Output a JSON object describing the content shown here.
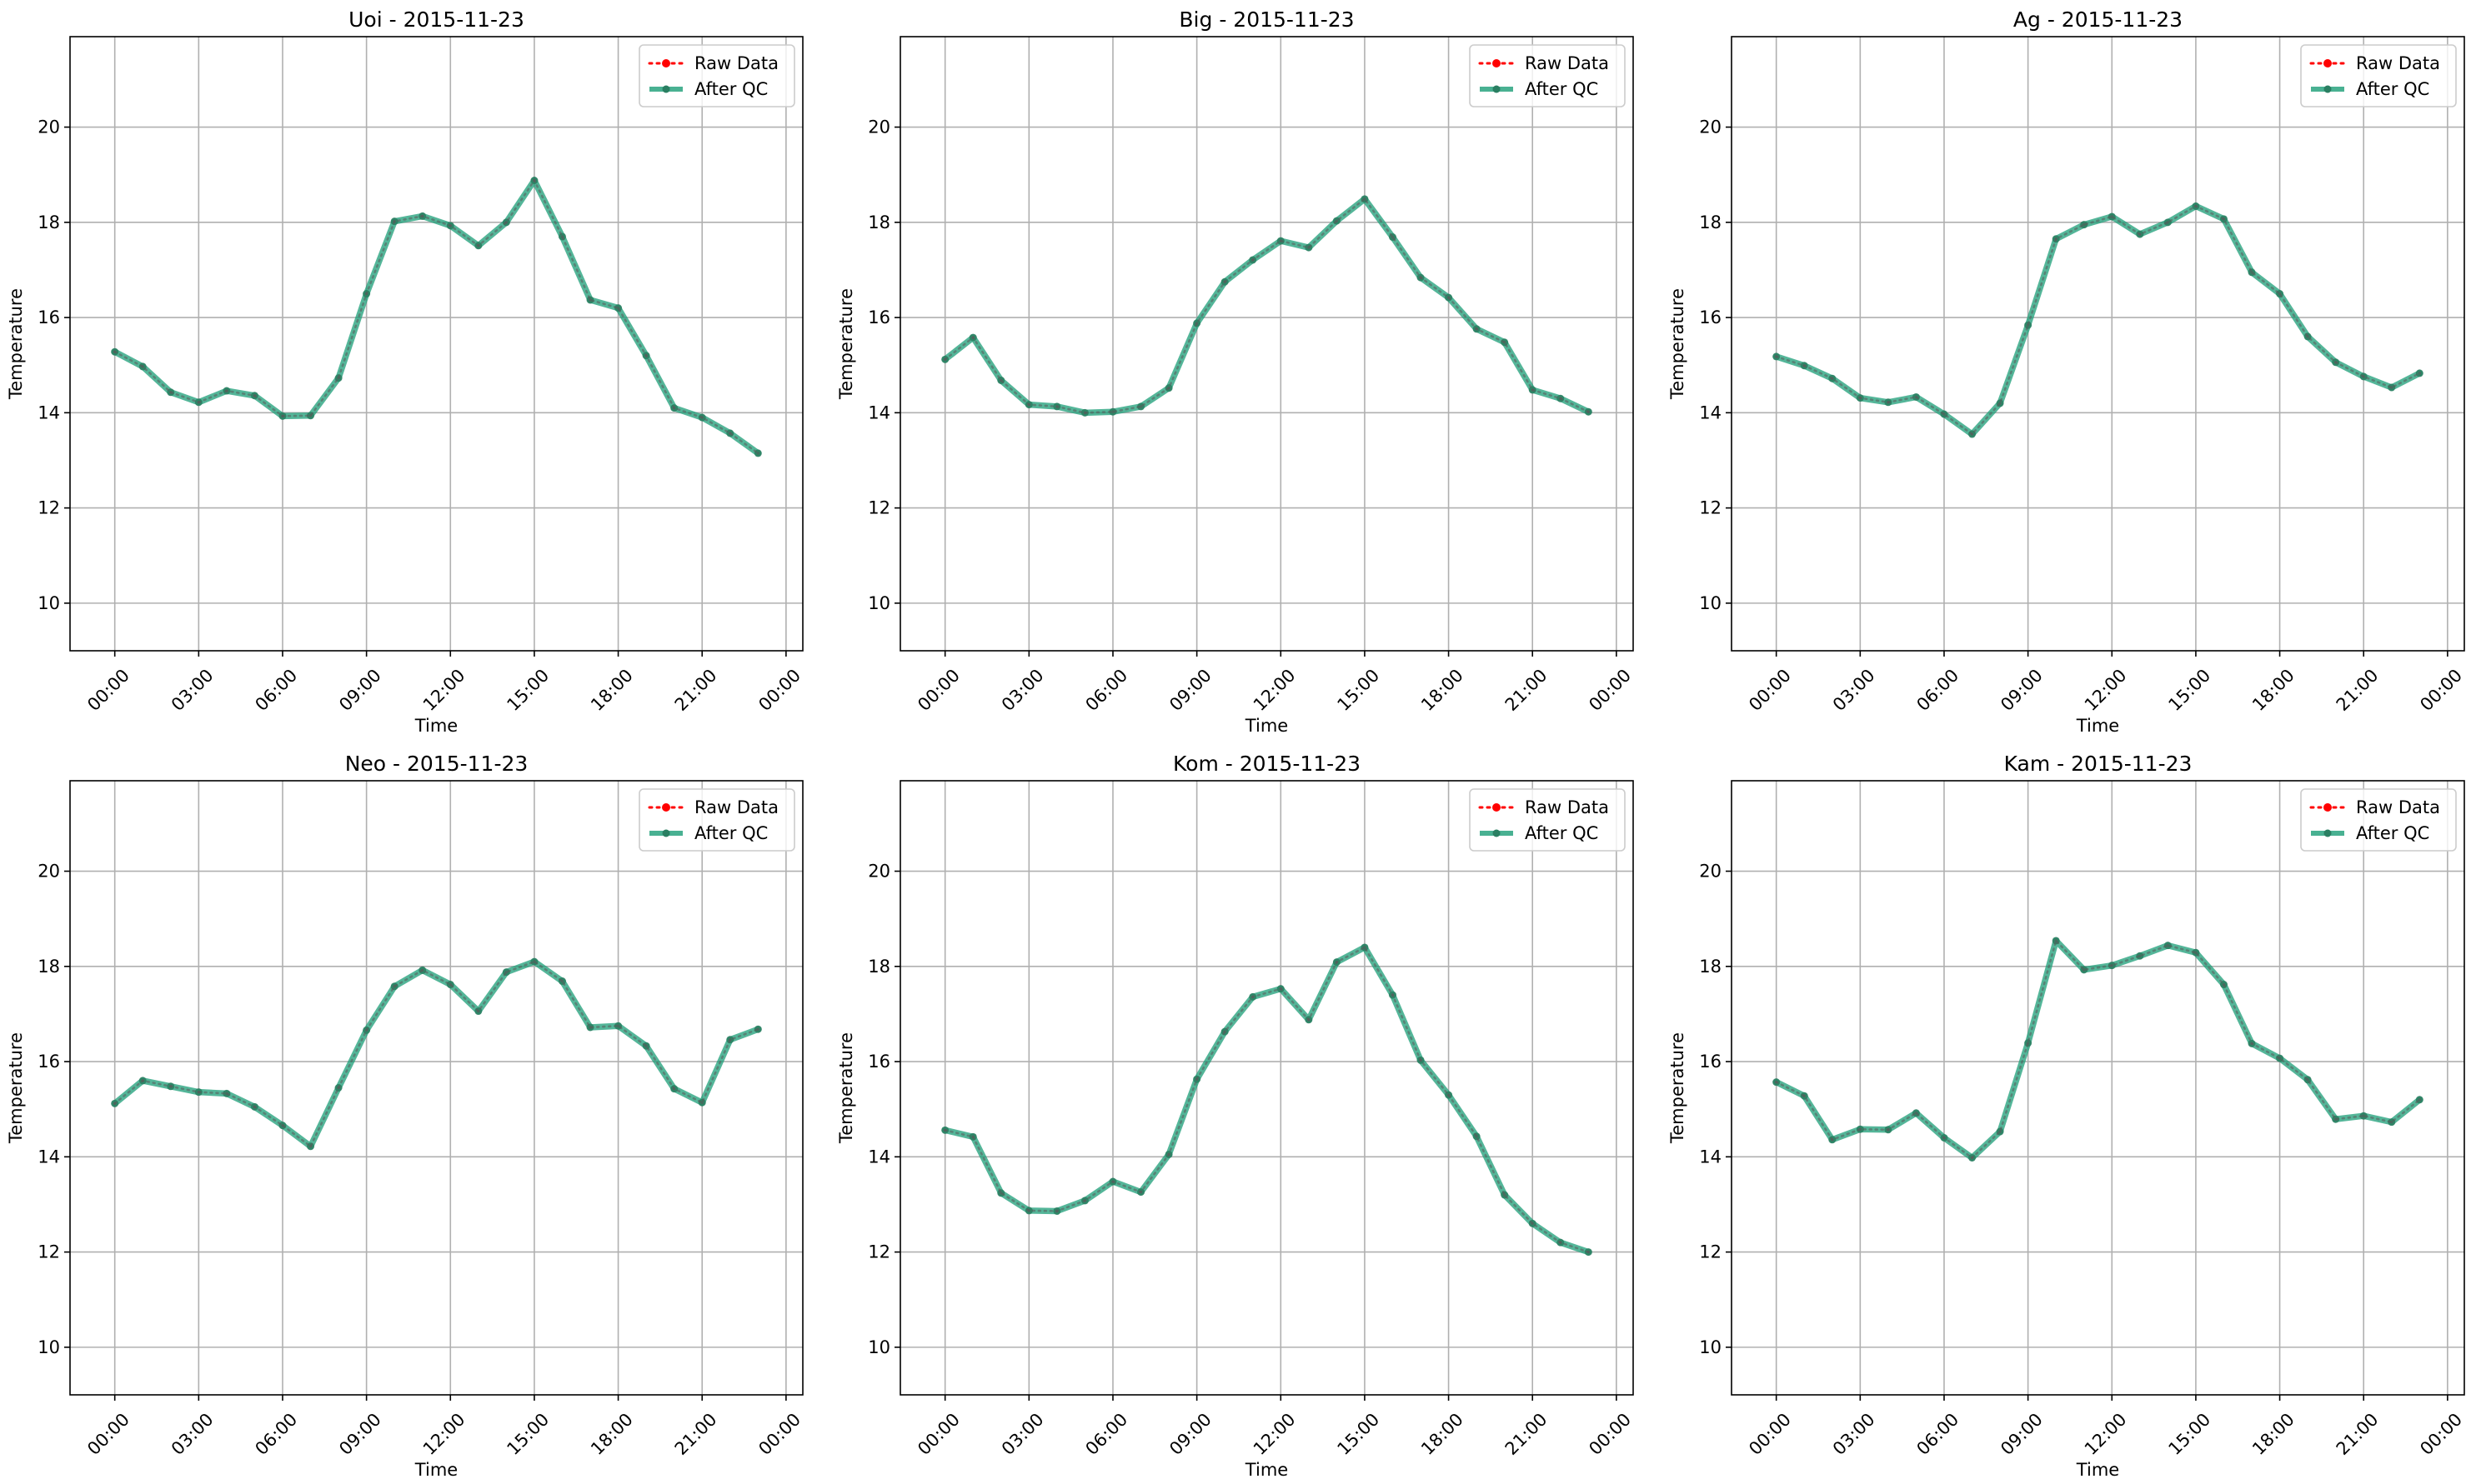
{
  "chart_data": [
    {
      "type": "line",
      "title": "Uoi - 2015-11-23",
      "xlabel": "Time",
      "ylabel": "Temperature",
      "x_range": [
        "2015-11-22 22:24",
        "2015-11-24 00:36"
      ],
      "ylim": [
        9.0,
        21.9
      ],
      "x_ticks": [
        "00:00",
        "03:00",
        "06:00",
        "09:00",
        "12:00",
        "15:00",
        "18:00",
        "21:00",
        "00:00"
      ],
      "y_ticks": [
        10,
        12,
        14,
        16,
        18,
        20
      ],
      "grid": true,
      "legend": "top-right",
      "x": [
        "00:00",
        "01:00",
        "02:00",
        "03:00",
        "04:00",
        "05:00",
        "06:00",
        "07:00",
        "08:00",
        "09:00",
        "10:00",
        "11:00",
        "12:00",
        "13:00",
        "14:00",
        "15:00",
        "16:00",
        "17:00",
        "18:00",
        "19:00",
        "20:00",
        "21:00",
        "22:00",
        "23:00"
      ],
      "series": [
        {
          "name": "Raw Data",
          "color": "#ff0000",
          "style": "dotted",
          "values": [
            15.28,
            14.97,
            14.43,
            14.22,
            14.46,
            14.36,
            13.93,
            13.94,
            14.73,
            16.5,
            18.02,
            18.13,
            17.93,
            17.51,
            18.0,
            18.88,
            17.7,
            16.37,
            16.2,
            15.2,
            14.1,
            13.9,
            13.57,
            13.15
          ]
        },
        {
          "name": "After QC",
          "color": "#1b9e77",
          "style": "solid",
          "values": [
            15.28,
            14.97,
            14.43,
            14.22,
            14.46,
            14.36,
            13.93,
            13.94,
            14.73,
            16.5,
            18.02,
            18.13,
            17.93,
            17.51,
            18.0,
            18.88,
            17.7,
            16.37,
            16.2,
            15.2,
            14.1,
            13.9,
            13.57,
            13.15
          ]
        }
      ]
    },
    {
      "type": "line",
      "title": "Big - 2015-11-23",
      "xlabel": "Time",
      "ylabel": "Temperature",
      "x_range": [
        "2015-11-22 22:24",
        "2015-11-24 00:36"
      ],
      "ylim": [
        9.0,
        21.9
      ],
      "x_ticks": [
        "00:00",
        "03:00",
        "06:00",
        "09:00",
        "12:00",
        "15:00",
        "18:00",
        "21:00",
        "00:00"
      ],
      "y_ticks": [
        10,
        12,
        14,
        16,
        18,
        20
      ],
      "grid": true,
      "legend": "top-right",
      "x": [
        "00:00",
        "01:00",
        "02:00",
        "03:00",
        "04:00",
        "05:00",
        "06:00",
        "07:00",
        "08:00",
        "09:00",
        "10:00",
        "11:00",
        "12:00",
        "13:00",
        "14:00",
        "15:00",
        "16:00",
        "17:00",
        "18:00",
        "19:00",
        "20:00",
        "21:00",
        "22:00",
        "23:00"
      ],
      "series": [
        {
          "name": "Raw Data",
          "color": "#ff0000",
          "style": "dotted",
          "values": [
            15.12,
            15.58,
            14.68,
            14.17,
            14.13,
            14.0,
            14.02,
            14.13,
            14.52,
            15.88,
            16.75,
            17.21,
            17.61,
            17.47,
            18.03,
            18.49,
            17.69,
            16.84,
            16.42,
            15.76,
            15.48,
            14.48,
            14.3,
            14.02
          ]
        },
        {
          "name": "After QC",
          "color": "#1b9e77",
          "style": "solid",
          "values": [
            15.12,
            15.58,
            14.68,
            14.17,
            14.13,
            14.0,
            14.02,
            14.13,
            14.52,
            15.88,
            16.75,
            17.21,
            17.61,
            17.47,
            18.03,
            18.49,
            17.69,
            16.84,
            16.42,
            15.76,
            15.48,
            14.48,
            14.3,
            14.02
          ]
        }
      ]
    },
    {
      "type": "line",
      "title": "Ag - 2015-11-23",
      "xlabel": "Time",
      "ylabel": "Temperature",
      "x_range": [
        "2015-11-22 22:24",
        "2015-11-24 00:36"
      ],
      "ylim": [
        9.0,
        21.9
      ],
      "x_ticks": [
        "00:00",
        "03:00",
        "06:00",
        "09:00",
        "12:00",
        "15:00",
        "18:00",
        "21:00",
        "00:00"
      ],
      "y_ticks": [
        10,
        12,
        14,
        16,
        18,
        20
      ],
      "grid": true,
      "legend": "top-right",
      "x": [
        "00:00",
        "01:00",
        "02:00",
        "03:00",
        "04:00",
        "05:00",
        "06:00",
        "07:00",
        "08:00",
        "09:00",
        "10:00",
        "11:00",
        "12:00",
        "13:00",
        "14:00",
        "15:00",
        "16:00",
        "17:00",
        "18:00",
        "19:00",
        "20:00",
        "21:00",
        "22:00",
        "23:00"
      ],
      "series": [
        {
          "name": "Raw Data",
          "color": "#ff0000",
          "style": "dotted",
          "values": [
            15.18,
            14.99,
            14.72,
            14.31,
            14.22,
            14.33,
            13.97,
            13.55,
            14.2,
            15.84,
            17.65,
            17.95,
            18.12,
            17.75,
            18.0,
            18.34,
            18.07,
            16.95,
            16.5,
            15.6,
            15.06,
            14.76,
            14.53,
            14.83
          ]
        },
        {
          "name": "After QC",
          "color": "#1b9e77",
          "style": "solid",
          "values": [
            15.18,
            14.99,
            14.72,
            14.31,
            14.22,
            14.33,
            13.97,
            13.55,
            14.2,
            15.84,
            17.65,
            17.95,
            18.12,
            17.75,
            18.0,
            18.34,
            18.07,
            16.95,
            16.5,
            15.6,
            15.06,
            14.76,
            14.53,
            14.83
          ]
        }
      ]
    },
    {
      "type": "line",
      "title": "Neo - 2015-11-23",
      "xlabel": "Time",
      "ylabel": "Temperature",
      "x_range": [
        "2015-11-22 22:24",
        "2015-11-24 00:36"
      ],
      "ylim": [
        9.0,
        21.9
      ],
      "x_ticks": [
        "00:00",
        "03:00",
        "06:00",
        "09:00",
        "12:00",
        "15:00",
        "18:00",
        "21:00",
        "00:00"
      ],
      "y_ticks": [
        10,
        12,
        14,
        16,
        18,
        20
      ],
      "grid": true,
      "legend": "top-right",
      "x": [
        "00:00",
        "01:00",
        "02:00",
        "03:00",
        "04:00",
        "05:00",
        "06:00",
        "07:00",
        "08:00",
        "09:00",
        "10:00",
        "11:00",
        "12:00",
        "13:00",
        "14:00",
        "15:00",
        "16:00",
        "17:00",
        "18:00",
        "19:00",
        "20:00",
        "21:00",
        "22:00",
        "23:00"
      ],
      "series": [
        {
          "name": "Raw Data",
          "color": "#ff0000",
          "style": "dotted",
          "values": [
            15.12,
            15.6,
            15.48,
            15.36,
            15.33,
            15.05,
            14.66,
            14.22,
            15.45,
            16.66,
            17.58,
            17.92,
            17.62,
            17.06,
            17.88,
            18.1,
            17.69,
            16.72,
            16.75,
            16.33,
            15.43,
            15.14,
            16.46,
            16.68
          ]
        },
        {
          "name": "After QC",
          "color": "#1b9e77",
          "style": "solid",
          "values": [
            15.12,
            15.6,
            15.48,
            15.36,
            15.33,
            15.05,
            14.66,
            14.22,
            15.45,
            16.66,
            17.58,
            17.92,
            17.62,
            17.06,
            17.88,
            18.1,
            17.69,
            16.72,
            16.75,
            16.33,
            15.43,
            15.14,
            16.46,
            16.68
          ]
        }
      ]
    },
    {
      "type": "line",
      "title": "Kom - 2015-11-23",
      "xlabel": "Time",
      "ylabel": "Temperature",
      "x_range": [
        "2015-11-22 22:24",
        "2015-11-24 00:36"
      ],
      "ylim": [
        9.0,
        21.9
      ],
      "x_ticks": [
        "00:00",
        "03:00",
        "06:00",
        "09:00",
        "12:00",
        "15:00",
        "18:00",
        "21:00",
        "00:00"
      ],
      "y_ticks": [
        10,
        12,
        14,
        16,
        18,
        20
      ],
      "grid": true,
      "legend": "top-right",
      "x": [
        "00:00",
        "01:00",
        "02:00",
        "03:00",
        "04:00",
        "05:00",
        "06:00",
        "07:00",
        "08:00",
        "09:00",
        "10:00",
        "11:00",
        "12:00",
        "13:00",
        "14:00",
        "15:00",
        "16:00",
        "17:00",
        "18:00",
        "19:00",
        "20:00",
        "21:00",
        "22:00",
        "23:00"
      ],
      "series": [
        {
          "name": "Raw Data",
          "color": "#ff0000",
          "style": "dotted",
          "values": [
            14.56,
            14.42,
            13.24,
            12.87,
            12.86,
            13.08,
            13.48,
            13.26,
            14.05,
            15.63,
            16.63,
            17.36,
            17.53,
            16.88,
            18.09,
            18.4,
            17.4,
            16.03,
            15.3,
            14.43,
            13.2,
            12.6,
            12.2,
            12.0
          ]
        },
        {
          "name": "After QC",
          "color": "#1b9e77",
          "style": "solid",
          "values": [
            14.56,
            14.42,
            13.24,
            12.87,
            12.86,
            13.08,
            13.48,
            13.26,
            14.05,
            15.63,
            16.63,
            17.36,
            17.53,
            16.88,
            18.09,
            18.4,
            17.4,
            16.03,
            15.3,
            14.43,
            13.2,
            12.6,
            12.2,
            12.0
          ]
        }
      ]
    },
    {
      "type": "line",
      "title": "Kam - 2015-11-23",
      "xlabel": "Time",
      "ylabel": "Temperature",
      "x_range": [
        "2015-11-22 22:24",
        "2015-11-24 00:36"
      ],
      "ylim": [
        9.0,
        21.9
      ],
      "x_ticks": [
        "00:00",
        "03:00",
        "06:00",
        "09:00",
        "12:00",
        "15:00",
        "18:00",
        "21:00",
        "00:00"
      ],
      "y_ticks": [
        10,
        12,
        14,
        16,
        18,
        20
      ],
      "grid": true,
      "legend": "top-right",
      "x": [
        "00:00",
        "01:00",
        "02:00",
        "03:00",
        "04:00",
        "05:00",
        "06:00",
        "07:00",
        "08:00",
        "09:00",
        "10:00",
        "11:00",
        "12:00",
        "13:00",
        "14:00",
        "15:00",
        "16:00",
        "17:00",
        "18:00",
        "19:00",
        "20:00",
        "21:00",
        "22:00",
        "23:00"
      ],
      "series": [
        {
          "name": "Raw Data",
          "color": "#ff0000",
          "style": "dotted",
          "values": [
            15.57,
            15.28,
            14.36,
            14.58,
            14.57,
            14.92,
            14.4,
            13.98,
            14.53,
            16.39,
            18.54,
            17.93,
            18.02,
            18.22,
            18.44,
            18.29,
            17.62,
            16.38,
            16.07,
            15.62,
            14.79,
            14.86,
            14.73,
            15.2
          ]
        },
        {
          "name": "After QC",
          "color": "#1b9e77",
          "style": "solid",
          "values": [
            15.57,
            15.28,
            14.36,
            14.58,
            14.57,
            14.92,
            14.4,
            13.98,
            14.53,
            16.39,
            18.54,
            17.93,
            18.02,
            18.22,
            18.44,
            18.29,
            17.62,
            16.38,
            16.07,
            15.62,
            14.79,
            14.86,
            14.73,
            15.2
          ]
        }
      ]
    }
  ]
}
